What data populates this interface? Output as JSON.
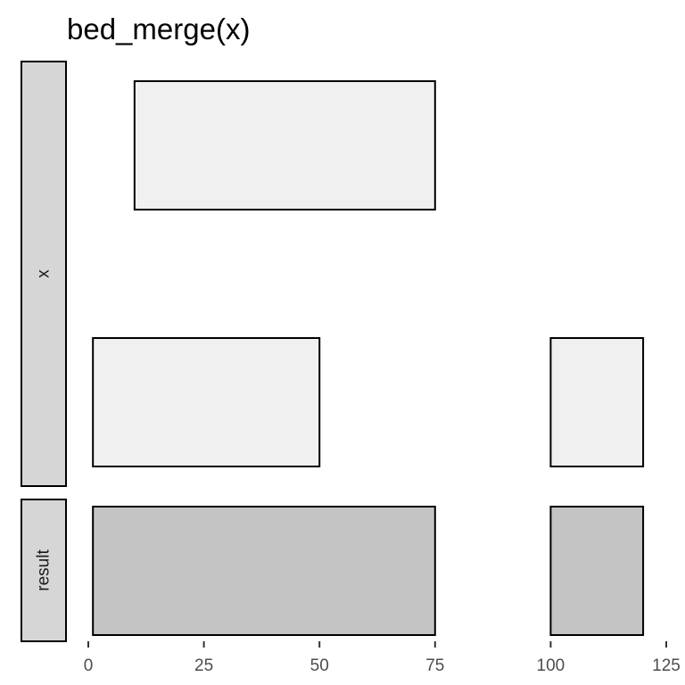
{
  "chart_data": {
    "type": "bar",
    "title": "bed_merge(x)",
    "xlabel": "",
    "ylabel": "",
    "xlim": [
      0,
      125
    ],
    "x_ticks": [
      0,
      25,
      50,
      75,
      100,
      125
    ],
    "x_tick_labels": [
      "0",
      "25",
      "50",
      "75",
      "100",
      "125"
    ],
    "grid": false,
    "panels": [
      {
        "label": "x",
        "fill": "#f0f0f0",
        "intervals": [
          {
            "start": 10,
            "end": 75,
            "row": 2
          },
          {
            "start": 1,
            "end": 50,
            "row": 1
          },
          {
            "start": 100,
            "end": 120,
            "row": 1
          }
        ]
      },
      {
        "label": "result",
        "fill": "#c4c4c4",
        "intervals": [
          {
            "start": 1,
            "end": 75,
            "row": 1
          },
          {
            "start": 100,
            "end": 120,
            "row": 1
          }
        ]
      }
    ]
  },
  "colors": {
    "strip_fill": "#d6d6d6",
    "outline": "#000000",
    "axis": "#333333"
  }
}
